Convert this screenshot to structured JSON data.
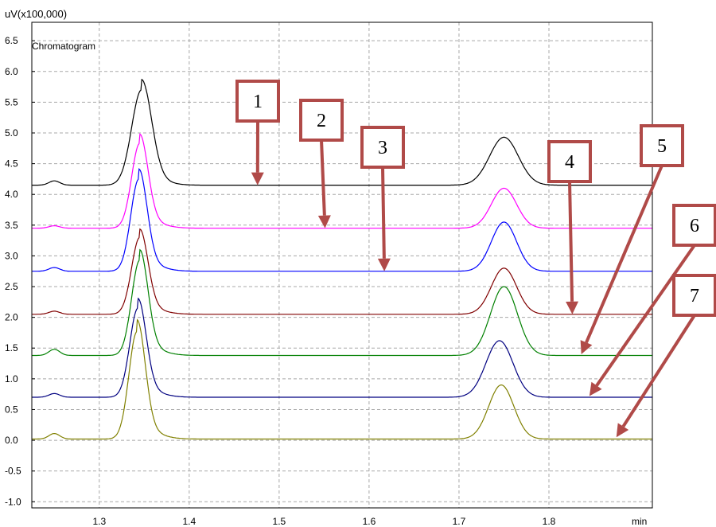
{
  "chart_data": {
    "type": "line",
    "title": "Chromatogram",
    "ylabel": "uV(x100,000)",
    "xlabel": "min",
    "xlim": [
      1.225,
      1.915
    ],
    "ylim": [
      -1.1,
      6.8
    ],
    "x_ticks": [
      1.3,
      1.4,
      1.5,
      1.6,
      1.7,
      1.8
    ],
    "x_tick_labels": [
      "1.3",
      "1.4",
      "1.5",
      "1.6",
      "1.7",
      "1.8"
    ],
    "y_ticks": [
      6.5,
      6.0,
      5.5,
      5.0,
      4.5,
      4.0,
      3.5,
      3.0,
      2.5,
      2.0,
      1.5,
      1.0,
      0.5,
      0.0,
      -0.5,
      -1.0
    ],
    "y_tick_labels": [
      "6.5",
      "6.0",
      "5.5",
      "5.0",
      "4.5",
      "4.0",
      "3.5",
      "3.0",
      "2.5",
      "2.0",
      "1.5",
      "1.0",
      "0.5",
      "0.0",
      "-0.5",
      "-1.0"
    ],
    "grid": true,
    "series": [
      {
        "baseline": 4.15,
        "peak1": {
          "rt": 1.347,
          "height": 1.55,
          "width": 0.011
        },
        "peak2": {
          "rt": 1.75,
          "height": 0.78,
          "width": 0.016
        },
        "bump": 0.07,
        "color": "#000000"
      },
      {
        "baseline": 3.45,
        "peak1": {
          "rt": 1.345,
          "height": 1.38,
          "width": 0.009
        },
        "peak2": {
          "rt": 1.75,
          "height": 0.65,
          "width": 0.014
        },
        "bump": 0.04,
        "color": "#ff00ff"
      },
      {
        "baseline": 2.75,
        "peak1": {
          "rt": 1.344,
          "height": 1.5,
          "width": 0.009
        },
        "peak2": {
          "rt": 1.75,
          "height": 0.8,
          "width": 0.014
        },
        "bump": 0.06,
        "color": "#0000ff"
      },
      {
        "baseline": 2.05,
        "peak1": {
          "rt": 1.345,
          "height": 1.25,
          "width": 0.009
        },
        "peak2": {
          "rt": 1.75,
          "height": 0.75,
          "width": 0.014
        },
        "bump": 0.05,
        "color": "#800000"
      },
      {
        "baseline": 1.38,
        "peak1": {
          "rt": 1.345,
          "height": 1.55,
          "width": 0.009
        },
        "peak2": {
          "rt": 1.75,
          "height": 1.12,
          "width": 0.015
        },
        "bump": 0.1,
        "color": "#008000"
      },
      {
        "baseline": 0.7,
        "peak1": {
          "rt": 1.343,
          "height": 1.45,
          "width": 0.009
        },
        "peak2": {
          "rt": 1.745,
          "height": 0.92,
          "width": 0.015
        },
        "bump": 0.06,
        "color": "#000080"
      },
      {
        "baseline": 0.02,
        "peak1": {
          "rt": 1.342,
          "height": 1.75,
          "width": 0.009
        },
        "peak2": {
          "rt": 1.747,
          "height": 0.88,
          "width": 0.014
        },
        "bump": 0.09,
        "color": "#808000"
      }
    ],
    "callouts": [
      {
        "label": "1",
        "target": {
          "x": 1.476,
          "y": 4.15
        }
      },
      {
        "label": "2",
        "target": {
          "x": 1.551,
          "y": 3.45
        }
      },
      {
        "label": "3",
        "target": {
          "x": 1.617,
          "y": 2.75
        }
      },
      {
        "label": "4",
        "target": {
          "x": 1.826,
          "y": 2.05
        }
      },
      {
        "label": "5",
        "target": {
          "x": 1.836,
          "y": 1.4
        }
      },
      {
        "label": "6",
        "target": {
          "x": 1.845,
          "y": 0.72
        }
      },
      {
        "label": "7",
        "target": {
          "x": 1.875,
          "y": 0.05
        }
      }
    ],
    "callout_color": "#b04a48"
  }
}
